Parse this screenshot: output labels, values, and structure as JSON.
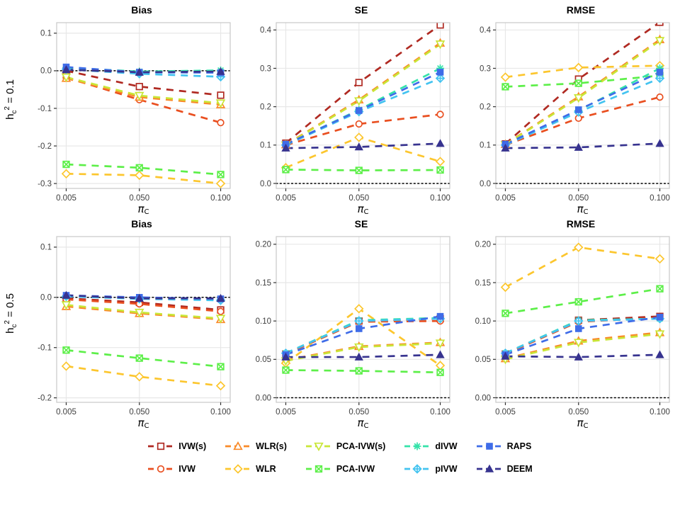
{
  "figure": {
    "bg": "#ffffff",
    "grid_color": "#e7e7e7",
    "border_color": "#c8c8c8",
    "tick_text_color": "#3f3f3f",
    "zero_line_color": "#000000"
  },
  "facets": [
    {
      "base": "h",
      "sub": "c",
      "sup": "2",
      "rest": " = 0.1"
    },
    {
      "base": "h",
      "sub": "c",
      "sup": "2",
      "rest": " = 0.5"
    }
  ],
  "xaxis": {
    "ticks": [
      0.005,
      0.05,
      0.1
    ],
    "tick_labels": [
      "0.005",
      "0.050",
      "0.100"
    ],
    "label_main": "π",
    "label_sub": "C"
  },
  "methods": [
    {
      "name": "IVW(s)",
      "color": "#b02a22",
      "marker": "square-open"
    },
    {
      "name": "IVW",
      "color": "#e94f20",
      "marker": "circle-open"
    },
    {
      "name": "WLR(s)",
      "color": "#f98b2a",
      "marker": "triangle-open"
    },
    {
      "name": "WLR",
      "color": "#fcc62e",
      "marker": "diamond-open"
    },
    {
      "name": "PCA-IVW(s)",
      "color": "#c9e637",
      "marker": "triangle-down-open"
    },
    {
      "name": "PCA-IVW",
      "color": "#5def49",
      "marker": "square-x"
    },
    {
      "name": "dIVW",
      "color": "#35e3aa",
      "marker": "asterisk"
    },
    {
      "name": "pIVW",
      "color": "#43c3f0",
      "marker": "diamond-plus"
    },
    {
      "name": "RAPS",
      "color": "#3f6ce8",
      "marker": "square-filled"
    },
    {
      "name": "DEEM",
      "color": "#37338f",
      "marker": "triangle-filled"
    }
  ],
  "legend": {
    "rows": [
      [
        "IVW(s)",
        "WLR(s)",
        "PCA-IVW(s)",
        "dIVW",
        "RAPS"
      ],
      [
        "IVW",
        "WLR",
        "PCA-IVW",
        "pIVW",
        "DEEM"
      ]
    ]
  },
  "chart_data": [
    {
      "type": "line",
      "row": 0,
      "col": 0,
      "title": "Bias",
      "facet": "h_c^2 = 0.1",
      "x": [
        0.005,
        0.05,
        0.1
      ],
      "ylim": [
        -0.313,
        0.128
      ],
      "yticks": [
        0.1,
        0.0,
        -0.1,
        -0.2,
        -0.3
      ],
      "ytick_labels": [
        "0.1",
        "0.0",
        "-0.1",
        "-0.2",
        "-0.3"
      ],
      "zero_line": true,
      "series": [
        {
          "method": "IVW(s)",
          "values": [
            0.0,
            -0.042,
            -0.065
          ]
        },
        {
          "method": "IVW",
          "values": [
            -0.018,
            -0.077,
            -0.138
          ]
        },
        {
          "method": "WLR(s)",
          "values": [
            -0.02,
            -0.07,
            -0.09
          ]
        },
        {
          "method": "WLR",
          "values": [
            -0.274,
            -0.278,
            -0.3
          ]
        },
        {
          "method": "PCA-IVW(s)",
          "values": [
            -0.017,
            -0.066,
            -0.086
          ]
        },
        {
          "method": "PCA-IVW",
          "values": [
            -0.249,
            -0.258,
            -0.276
          ]
        },
        {
          "method": "dIVW",
          "values": [
            0.008,
            -0.002,
            0.001
          ]
        },
        {
          "method": "pIVW",
          "values": [
            0.004,
            -0.008,
            -0.016
          ]
        },
        {
          "method": "RAPS",
          "values": [
            0.01,
            -0.004,
            -0.005
          ]
        },
        {
          "method": "DEEM",
          "values": [
            0.003,
            -0.004,
            -0.002
          ]
        }
      ]
    },
    {
      "type": "line",
      "row": 0,
      "col": 1,
      "title": "SE",
      "facet": "h_c^2 = 0.1",
      "x": [
        0.005,
        0.05,
        0.1
      ],
      "ylim": [
        -0.013,
        0.419
      ],
      "yticks": [
        0.4,
        0.3,
        0.2,
        0.1,
        0.0
      ],
      "ytick_labels": [
        "0.4",
        "0.3",
        "0.2",
        "0.1",
        "0.0"
      ],
      "zero_line": true,
      "series": [
        {
          "method": "IVW(s)",
          "values": [
            0.105,
            0.263,
            0.413
          ]
        },
        {
          "method": "IVW",
          "values": [
            0.1,
            0.155,
            0.18
          ]
        },
        {
          "method": "WLR(s)",
          "values": [
            0.101,
            0.218,
            0.366
          ]
        },
        {
          "method": "WLR",
          "values": [
            0.041,
            0.12,
            0.057
          ]
        },
        {
          "method": "PCA-IVW(s)",
          "values": [
            0.1,
            0.215,
            0.363
          ]
        },
        {
          "method": "PCA-IVW",
          "values": [
            0.036,
            0.034,
            0.035
          ]
        },
        {
          "method": "dIVW",
          "values": [
            0.101,
            0.192,
            0.3
          ]
        },
        {
          "method": "pIVW",
          "values": [
            0.1,
            0.187,
            0.274
          ]
        },
        {
          "method": "RAPS",
          "values": [
            0.102,
            0.19,
            0.29
          ]
        },
        {
          "method": "DEEM",
          "values": [
            0.092,
            0.095,
            0.104
          ]
        }
      ]
    },
    {
      "type": "line",
      "row": 0,
      "col": 2,
      "title": "RMSE",
      "facet": "h_c^2 = 0.1",
      "x": [
        0.005,
        0.05,
        0.1
      ],
      "ylim": [
        -0.013,
        0.419
      ],
      "yticks": [
        0.4,
        0.3,
        0.2,
        0.1,
        0.0
      ],
      "ytick_labels": [
        "0.4",
        "0.3",
        "0.2",
        "0.1",
        "0.0"
      ],
      "zero_line": true,
      "series": [
        {
          "method": "IVW(s)",
          "values": [
            0.103,
            0.272,
            0.42
          ]
        },
        {
          "method": "IVW",
          "values": [
            0.1,
            0.17,
            0.225
          ]
        },
        {
          "method": "WLR(s)",
          "values": [
            0.102,
            0.226,
            0.375
          ]
        },
        {
          "method": "WLR",
          "values": [
            0.277,
            0.302,
            0.307
          ]
        },
        {
          "method": "PCA-IVW(s)",
          "values": [
            0.101,
            0.223,
            0.372
          ]
        },
        {
          "method": "PCA-IVW",
          "values": [
            0.252,
            0.261,
            0.281
          ]
        },
        {
          "method": "dIVW",
          "values": [
            0.101,
            0.19,
            0.3
          ]
        },
        {
          "method": "pIVW",
          "values": [
            0.1,
            0.186,
            0.274
          ]
        },
        {
          "method": "RAPS",
          "values": [
            0.102,
            0.192,
            0.29
          ]
        },
        {
          "method": "DEEM",
          "values": [
            0.092,
            0.094,
            0.104
          ]
        }
      ]
    },
    {
      "type": "line",
      "row": 1,
      "col": 0,
      "title": "Bias",
      "facet": "h_c^2 = 0.5",
      "x": [
        0.005,
        0.05,
        0.1
      ],
      "ylim": [
        -0.209,
        0.121
      ],
      "yticks": [
        0.1,
        0.0,
        -0.1,
        -0.2
      ],
      "ytick_labels": [
        "0.1",
        "0.0",
        "-0.1",
        "-0.2"
      ],
      "zero_line": true,
      "series": [
        {
          "method": "IVW(s)",
          "values": [
            -0.002,
            -0.01,
            -0.025
          ]
        },
        {
          "method": "IVW",
          "values": [
            -0.004,
            -0.013,
            -0.028
          ]
        },
        {
          "method": "WLR(s)",
          "values": [
            -0.018,
            -0.032,
            -0.044
          ]
        },
        {
          "method": "WLR",
          "values": [
            -0.137,
            -0.158,
            -0.176
          ]
        },
        {
          "method": "PCA-IVW(s)",
          "values": [
            -0.015,
            -0.03,
            -0.042
          ]
        },
        {
          "method": "PCA-IVW",
          "values": [
            -0.105,
            -0.121,
            -0.138
          ]
        },
        {
          "method": "dIVW",
          "values": [
            0.002,
            -0.001,
            -0.004
          ]
        },
        {
          "method": "pIVW",
          "values": [
            0.002,
            -0.003,
            -0.006
          ]
        },
        {
          "method": "RAPS",
          "values": [
            0.004,
            0.0,
            -0.003
          ]
        },
        {
          "method": "DEEM",
          "values": [
            0.004,
            -0.002,
            -0.002
          ]
        }
      ]
    },
    {
      "type": "line",
      "row": 1,
      "col": 1,
      "title": "SE",
      "facet": "h_c^2 = 0.5",
      "x": [
        0.005,
        0.05,
        0.1
      ],
      "ylim": [
        -0.006,
        0.21
      ],
      "yticks": [
        0.2,
        0.15,
        0.1,
        0.05,
        0.0
      ],
      "ytick_labels": [
        "0.20",
        "0.15",
        "0.10",
        "0.05",
        "0.00"
      ],
      "zero_line": true,
      "series": [
        {
          "method": "IVW(s)",
          "values": [
            0.057,
            0.1,
            0.103
          ]
        },
        {
          "method": "IVW",
          "values": [
            0.057,
            0.099,
            0.1
          ]
        },
        {
          "method": "WLR(s)",
          "values": [
            0.049,
            0.067,
            0.072
          ]
        },
        {
          "method": "WLR",
          "values": [
            0.045,
            0.116,
            0.042
          ]
        },
        {
          "method": "PCA-IVW(s)",
          "values": [
            0.048,
            0.066,
            0.071
          ]
        },
        {
          "method": "PCA-IVW",
          "values": [
            0.036,
            0.035,
            0.033
          ]
        },
        {
          "method": "dIVW",
          "values": [
            0.058,
            0.101,
            0.104
          ]
        },
        {
          "method": "pIVW",
          "values": [
            0.058,
            0.1,
            0.103
          ]
        },
        {
          "method": "RAPS",
          "values": [
            0.056,
            0.09,
            0.106
          ]
        },
        {
          "method": "DEEM",
          "values": [
            0.053,
            0.053,
            0.056
          ]
        }
      ]
    },
    {
      "type": "line",
      "row": 1,
      "col": 2,
      "title": "RMSE",
      "facet": "h_c^2 = 0.5",
      "x": [
        0.005,
        0.05,
        0.1
      ],
      "ylim": [
        -0.006,
        0.21
      ],
      "yticks": [
        0.2,
        0.15,
        0.1,
        0.05,
        0.0
      ],
      "ytick_labels": [
        "0.20",
        "0.15",
        "0.10",
        "0.05",
        "0.00"
      ],
      "zero_line": true,
      "series": [
        {
          "method": "IVW(s)",
          "values": [
            0.057,
            0.101,
            0.106
          ]
        },
        {
          "method": "IVW",
          "values": [
            0.057,
            0.099,
            0.104
          ]
        },
        {
          "method": "WLR(s)",
          "values": [
            0.051,
            0.074,
            0.085
          ]
        },
        {
          "method": "WLR",
          "values": [
            0.144,
            0.196,
            0.181
          ]
        },
        {
          "method": "PCA-IVW(s)",
          "values": [
            0.05,
            0.072,
            0.083
          ]
        },
        {
          "method": "PCA-IVW",
          "values": [
            0.11,
            0.125,
            0.142
          ]
        },
        {
          "method": "dIVW",
          "values": [
            0.058,
            0.101,
            0.103
          ]
        },
        {
          "method": "pIVW",
          "values": [
            0.058,
            0.1,
            0.103
          ]
        },
        {
          "method": "RAPS",
          "values": [
            0.056,
            0.09,
            0.105
          ]
        },
        {
          "method": "DEEM",
          "values": [
            0.054,
            0.053,
            0.056
          ]
        }
      ]
    }
  ]
}
